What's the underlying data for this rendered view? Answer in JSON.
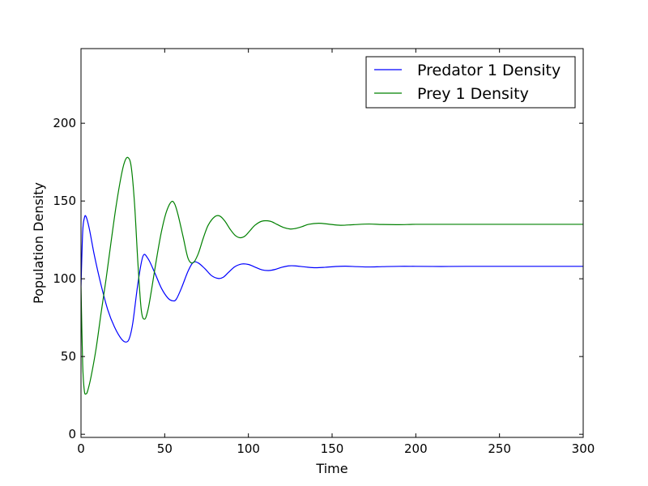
{
  "chart_data": {
    "type": "line",
    "xlabel": "Time",
    "ylabel": "Population Density",
    "xlim": [
      0,
      300
    ],
    "ylim": [
      -2,
      248
    ],
    "xticks": [
      0,
      50,
      100,
      150,
      200,
      250,
      300
    ],
    "yticks": [
      0,
      50,
      100,
      150,
      200
    ],
    "xtick_labels": [
      "0",
      "50",
      "100",
      "150",
      "200",
      "250",
      "300"
    ],
    "ytick_labels": [
      "0",
      "50",
      "100",
      "150",
      "200"
    ],
    "grid": false,
    "legend_position": "top-right",
    "series": [
      {
        "name": "Predator 1 Density",
        "color": "#0000ff",
        "x": [
          0,
          1,
          2,
          3,
          5,
          8,
          12,
          16,
          20,
          24,
          27,
          29,
          31,
          34,
          37,
          40,
          44,
          48,
          52,
          55,
          57,
          60,
          64,
          67,
          70,
          74,
          78,
          82,
          85,
          88,
          92,
          96,
          100,
          104,
          108,
          112,
          116,
          120,
          124,
          128,
          134,
          140,
          146,
          152,
          158,
          165,
          172,
          180,
          190,
          200,
          215,
          230,
          250,
          275,
          300
        ],
        "y": [
          95,
          130,
          139,
          140,
          132,
          115,
          96,
          80,
          69,
          61.5,
          59.3,
          62,
          72,
          97,
          114.5,
          113,
          104,
          94,
          87.5,
          85.8,
          87,
          94,
          105,
          110.5,
          110.2,
          106.5,
          102,
          100.2,
          101,
          104,
          107.8,
          109.5,
          109.2,
          107.5,
          105.8,
          105.3,
          106,
          107.4,
          108.3,
          108.3,
          107.6,
          107.1,
          107.4,
          107.9,
          108.1,
          107.8,
          107.6,
          107.8,
          108,
          108,
          107.9,
          108,
          108,
          108,
          108
        ]
      },
      {
        "name": "Prey 1 Density",
        "color": "#008000",
        "x": [
          0,
          1,
          2,
          3,
          4,
          6,
          9,
          12,
          15,
          18,
          21,
          24,
          26,
          28,
          30,
          32,
          34,
          36,
          38,
          40,
          42,
          45,
          48,
          51,
          54,
          56,
          58,
          61,
          64,
          67,
          70,
          73,
          76,
          80,
          83,
          86,
          89,
          92,
          95,
          98,
          101,
          104,
          108,
          113,
          117,
          121,
          125,
          128,
          132,
          136,
          142,
          148,
          155,
          163,
          172,
          180,
          190,
          200,
          215,
          230,
          250,
          275,
          300
        ],
        "y": [
          95,
          45,
          28,
          26,
          28,
          37,
          55,
          78,
          100,
          124,
          147,
          166,
          175,
          178,
          172,
          148,
          110,
          80,
          74,
          80,
          92,
          112,
          130,
          143,
          149.5,
          148,
          141,
          127,
          113,
          110.3,
          116,
          126,
          134.5,
          140,
          140.3,
          137,
          132,
          128,
          126.4,
          127.5,
          131,
          134.5,
          137,
          137,
          135,
          133,
          132,
          132.3,
          133.5,
          135,
          135.7,
          135.1,
          134.4,
          134.8,
          135.2,
          134.9,
          134.8,
          135,
          135,
          135,
          135,
          135,
          135
        ]
      }
    ]
  }
}
